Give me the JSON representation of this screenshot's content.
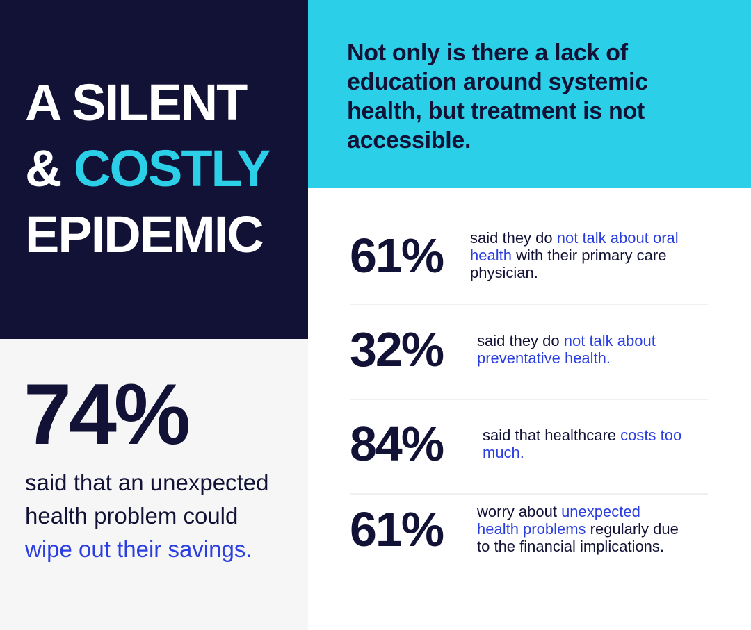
{
  "title": {
    "line1": "A SILENT",
    "amp": "& ",
    "costly": "COSTLY",
    "line3": "EPIDEMIC"
  },
  "headline": "Not only is there a lack of education around systemic health, but treatment is not accessible.",
  "main_stat": {
    "value": "74%",
    "segments": [
      {
        "text": "said that an unexpected health problem could ",
        "hl": false
      },
      {
        "text": "wipe out their savings.",
        "hl": true
      }
    ]
  },
  "stats": [
    {
      "value": "61%",
      "segments": [
        {
          "text": "said they do ",
          "hl": false
        },
        {
          "text": "not talk about oral health",
          "hl": true
        },
        {
          "text": " with their primary care physician.",
          "hl": false
        }
      ]
    },
    {
      "value": "32%",
      "segments": [
        {
          "text": "said they do ",
          "hl": false
        },
        {
          "text": "not talk about preventative health.",
          "hl": true
        }
      ]
    },
    {
      "value": "84%",
      "segments": [
        {
          "text": "said that healthcare ",
          "hl": false
        },
        {
          "text": "costs too much.",
          "hl": true
        }
      ]
    },
    {
      "value": "61%",
      "segments": [
        {
          "text": "worry about ",
          "hl": false
        },
        {
          "text": "unexpected health problems",
          "hl": true
        },
        {
          "text": " regularly due to the financial implications.",
          "hl": false
        }
      ]
    }
  ],
  "colors": {
    "navy": "#121236",
    "cyan": "#2bcfe8",
    "blue": "#2b3fe0",
    "gray": "#f6f6f6"
  }
}
